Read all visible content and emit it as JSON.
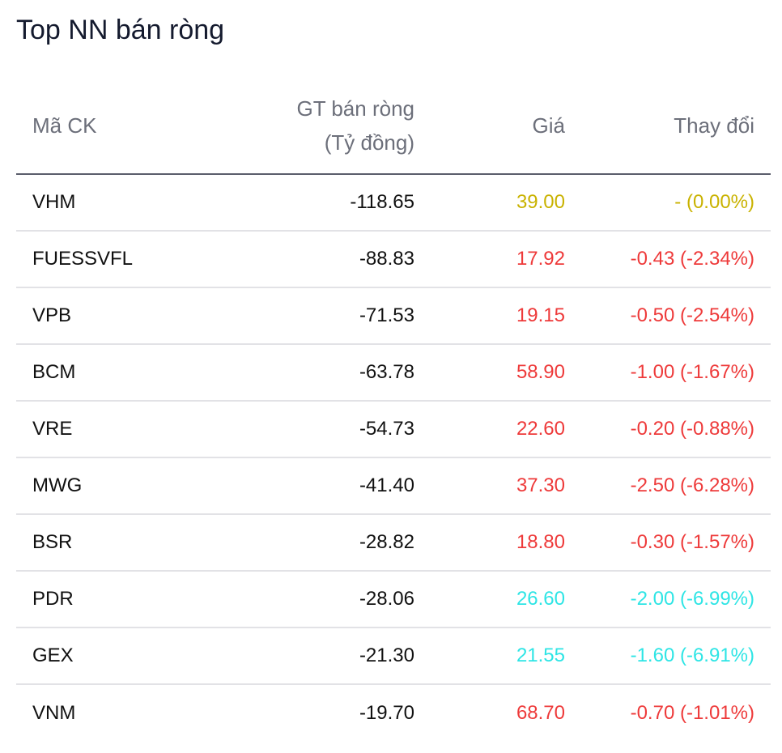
{
  "title": "Top NN bán ròng",
  "columns": {
    "symbol": "Mã CK",
    "net_value_line1": "GT bán ròng",
    "net_value_line2": "(Tỷ đồng)",
    "price": "Giá",
    "change": "Thay đổi"
  },
  "colors": {
    "reference": "#c9b200",
    "down": "#ee3a3a",
    "floor": "#2ee5e5"
  },
  "rows": [
    {
      "symbol": "VHM",
      "net_value": "-118.65",
      "price": "39.00",
      "change": "- (0.00%)",
      "status": "ref"
    },
    {
      "symbol": "FUESSVFL",
      "net_value": "-88.83",
      "price": "17.92",
      "change": "-0.43 (-2.34%)",
      "status": "down"
    },
    {
      "symbol": "VPB",
      "net_value": "-71.53",
      "price": "19.15",
      "change": "-0.50 (-2.54%)",
      "status": "down"
    },
    {
      "symbol": "BCM",
      "net_value": "-63.78",
      "price": "58.90",
      "change": "-1.00 (-1.67%)",
      "status": "down"
    },
    {
      "symbol": "VRE",
      "net_value": "-54.73",
      "price": "22.60",
      "change": "-0.20 (-0.88%)",
      "status": "down"
    },
    {
      "symbol": "MWG",
      "net_value": "-41.40",
      "price": "37.30",
      "change": "-2.50 (-6.28%)",
      "status": "down"
    },
    {
      "symbol": "BSR",
      "net_value": "-28.82",
      "price": "18.80",
      "change": "-0.30 (-1.57%)",
      "status": "down"
    },
    {
      "symbol": "PDR",
      "net_value": "-28.06",
      "price": "26.60",
      "change": "-2.00 (-6.99%)",
      "status": "floor"
    },
    {
      "symbol": "GEX",
      "net_value": "-21.30",
      "price": "21.55",
      "change": "-1.60 (-6.91%)",
      "status": "floor"
    },
    {
      "symbol": "VNM",
      "net_value": "-19.70",
      "price": "68.70",
      "change": "-0.70 (-1.01%)",
      "status": "down"
    }
  ]
}
